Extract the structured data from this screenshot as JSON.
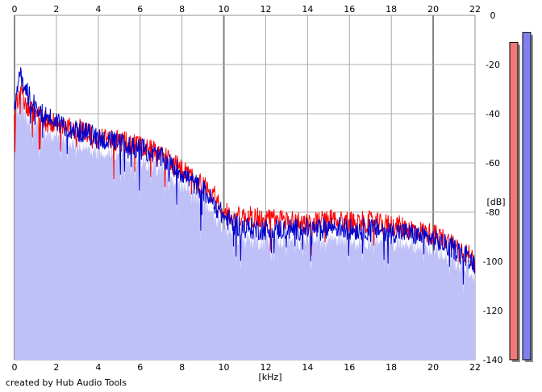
{
  "chart_data": {
    "type": "area",
    "xlabel": "[kHz]",
    "ylabel": "[dB]",
    "xlim": [
      0,
      22
    ],
    "ylim": [
      -140,
      0
    ],
    "x_ticks": [
      "0",
      "2",
      "4",
      "6",
      "8",
      "10",
      "12",
      "14",
      "16",
      "18",
      "20",
      "22"
    ],
    "y_ticks": [
      "0",
      "-20",
      "-40",
      "-60",
      "-80",
      "-100",
      "-120",
      "-140"
    ],
    "grid": true,
    "series": [
      {
        "color": "#ff0000",
        "x": [
          0,
          0.25,
          0.5,
          0.75,
          1,
          1.5,
          2,
          2.5,
          3,
          3.5,
          4,
          4.5,
          5,
          5.5,
          6,
          6.5,
          7,
          7.5,
          8,
          8.5,
          9,
          9.5,
          10,
          10.5,
          11,
          11.5,
          12,
          12.5,
          13,
          13.5,
          14,
          14.5,
          15,
          15.5,
          16,
          16.5,
          17,
          17.5,
          18,
          18.5,
          19,
          19.5,
          20,
          20.5,
          21,
          21.5,
          22
        ],
        "values": [
          -42,
          -30,
          -35,
          -38,
          -40,
          -43,
          -44,
          -46,
          -46,
          -48,
          -50,
          -50,
          -51,
          -52,
          -53,
          -54,
          -56,
          -60,
          -63,
          -66,
          -69,
          -72,
          -80,
          -82,
          -82,
          -82,
          -83,
          -83,
          -83,
          -84,
          -84,
          -84,
          -83,
          -83,
          -84,
          -84,
          -84,
          -85,
          -85,
          -86,
          -87,
          -88,
          -89,
          -91,
          -93,
          -96,
          -100
        ]
      },
      {
        "color": "#0000cc",
        "x": [
          0,
          0.25,
          0.5,
          0.75,
          1,
          1.5,
          2,
          2.5,
          3,
          3.5,
          4,
          4.5,
          5,
          5.5,
          6,
          6.5,
          7,
          7.5,
          8,
          8.5,
          9,
          9.5,
          10,
          10.5,
          11,
          11.5,
          12,
          12.5,
          13,
          13.5,
          14,
          14.5,
          15,
          15.5,
          16,
          16.5,
          17,
          17.5,
          18,
          18.5,
          19,
          19.5,
          20,
          20.5,
          21,
          21.5,
          22
        ],
        "values": [
          -40,
          -22,
          -30,
          -34,
          -37,
          -41,
          -43,
          -45,
          -47,
          -48,
          -50,
          -51,
          -52,
          -53,
          -54,
          -56,
          -58,
          -61,
          -64,
          -68,
          -71,
          -76,
          -82,
          -85,
          -86,
          -87,
          -87,
          -87,
          -87,
          -87,
          -87,
          -87,
          -86,
          -86,
          -87,
          -87,
          -87,
          -87,
          -88,
          -88,
          -89,
          -90,
          -91,
          -93,
          -95,
          -97,
          -101
        ]
      }
    ],
    "meters": [
      {
        "color": "#f07878",
        "value_db": -11
      },
      {
        "color": "#8080ee",
        "value_db": -7
      }
    ]
  },
  "credit": "created by Hub Audio Tools"
}
